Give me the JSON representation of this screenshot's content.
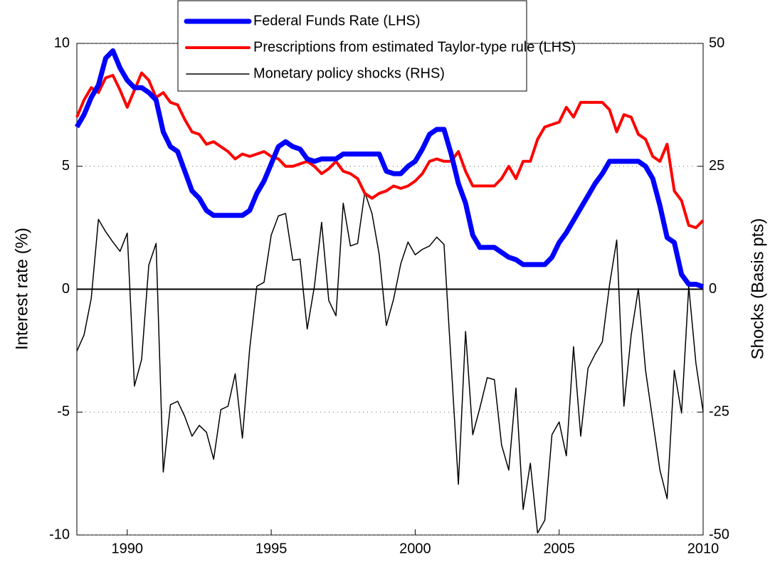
{
  "chart_data": {
    "type": "line",
    "y_label": "Interest rate (%)",
    "y2_label": "Shocks (Basis pts)",
    "xlim": [
      1988.25,
      2010
    ],
    "xticks": [
      1990,
      1995,
      2000,
      2005,
      2010
    ],
    "ylim": [
      -10,
      10
    ],
    "yticks": [
      -10,
      -5,
      0,
      5,
      10
    ],
    "y2lim": [
      -50,
      50
    ],
    "y2ticks": [
      -50,
      -25,
      0,
      25,
      50
    ],
    "grid": true,
    "legend": "top",
    "x": [
      1988.25,
      1988.5,
      1988.75,
      1989,
      1989.25,
      1989.5,
      1989.75,
      1990,
      1990.25,
      1990.5,
      1990.75,
      1991,
      1991.25,
      1991.5,
      1991.75,
      1992,
      1992.25,
      1992.5,
      1992.75,
      1993,
      1993.25,
      1993.5,
      1993.75,
      1994,
      1994.25,
      1994.5,
      1994.75,
      1995,
      1995.25,
      1995.5,
      1995.75,
      1996,
      1996.25,
      1996.5,
      1996.75,
      1997,
      1997.25,
      1997.5,
      1997.75,
      1998,
      1998.25,
      1998.5,
      1998.75,
      1999,
      1999.25,
      1999.5,
      1999.75,
      2000,
      2000.25,
      2000.5,
      2000.75,
      2001,
      2001.25,
      2001.5,
      2001.75,
      2002,
      2002.25,
      2002.5,
      2002.75,
      2003,
      2003.25,
      2003.5,
      2003.75,
      2004,
      2004.25,
      2004.5,
      2004.75,
      2005,
      2005.25,
      2005.5,
      2005.75,
      2006,
      2006.25,
      2006.5,
      2006.75,
      2007,
      2007.25,
      2007.5,
      2007.75,
      2008,
      2008.25,
      2008.5,
      2008.75,
      2009,
      2009.25,
      2009.5,
      2009.75,
      2010
    ],
    "series": [
      {
        "name": "Federal Funds Rate (LHS)",
        "color": "#0000ff",
        "width": 7,
        "values": [
          6.6,
          7.1,
          7.8,
          8.3,
          9.4,
          9.7,
          9,
          8.5,
          8.2,
          8.2,
          8,
          7.7,
          6.4,
          5.8,
          5.6,
          4.8,
          4,
          3.7,
          3.2,
          3,
          3,
          3,
          3,
          3,
          3.2,
          3.9,
          4.4,
          5.1,
          5.8,
          6,
          5.8,
          5.7,
          5.3,
          5.2,
          5.3,
          5.3,
          5.3,
          5.5,
          5.5,
          5.5,
          5.5,
          5.5,
          5.5,
          4.8,
          4.7,
          4.7,
          5,
          5.2,
          5.7,
          6.3,
          6.5,
          6.5,
          5.5,
          4.3,
          3.5,
          2.2,
          1.7,
          1.7,
          1.7,
          1.5,
          1.3,
          1.2,
          1,
          1,
          1,
          1,
          1.3,
          1.9,
          2.3,
          2.8,
          3.3,
          3.8,
          4.3,
          4.7,
          5.2,
          5.2,
          5.2,
          5.2,
          5.2,
          5,
          4.5,
          3.4,
          2.1,
          1.9,
          0.6,
          0.2,
          0.2,
          0.1
        ]
      },
      {
        "name": "Prescriptions from estimated Taylor-type rule (LHS)",
        "color": "#ff0000",
        "width": 4,
        "values": [
          7,
          7.7,
          8.2,
          8,
          8.6,
          8.7,
          8.1,
          7.4,
          8.1,
          8.8,
          8.5,
          7.8,
          8,
          7.6,
          7.5,
          6.9,
          6.4,
          6.3,
          5.9,
          6,
          5.8,
          5.6,
          5.3,
          5.5,
          5.4,
          5.5,
          5.6,
          5.4,
          5.3,
          5,
          5,
          5.1,
          5.2,
          5,
          4.7,
          4.9,
          5.2,
          4.8,
          4.7,
          4.5,
          3.9,
          3.7,
          3.9,
          4,
          4.2,
          4.1,
          4.2,
          4.4,
          4.7,
          5.2,
          5.3,
          5.2,
          5.2,
          5.6,
          4.8,
          4.2,
          4.2,
          4.2,
          4.2,
          4.5,
          5,
          4.5,
          5.2,
          5.2,
          6.1,
          6.6,
          6.7,
          6.8,
          7.4,
          7,
          7.6,
          7.6,
          7.6,
          7.6,
          7.3,
          6.4,
          7.1,
          7,
          6.3,
          6.1,
          5.4,
          5.2,
          5.9,
          4,
          3.6,
          2.6,
          2.5,
          2.8
        ]
      },
      {
        "name": "Monetary policy shocks (RHS)",
        "color": "#000000",
        "width": 1.5,
        "axis": "y2",
        "values": [
          -12.6,
          -9.3,
          -1.9,
          14.2,
          11.7,
          9.6,
          7.7,
          11.4,
          -19.7,
          -14.3,
          4.9,
          9.3,
          -37.2,
          -23.5,
          -22.8,
          -25.9,
          -29.9,
          -27.7,
          -29.1,
          -34.6,
          -24.5,
          -23.8,
          -17.2,
          -30.3,
          -12.2,
          0.6,
          1.4,
          11,
          14.9,
          15.4,
          5.9,
          6.1,
          -8.1,
          0.6,
          13.6,
          -2.3,
          -5.4,
          17.5,
          8.8,
          9.3,
          19.7,
          15.4,
          7.1,
          -7.4,
          -2,
          5.2,
          9.6,
          7,
          8.1,
          8.8,
          10.6,
          9.1,
          -15.1,
          -39.7,
          -8.6,
          -29.6,
          -24.1,
          -18,
          -18.4,
          -31.7,
          -36.8,
          -20.1,
          -44.8,
          -35.4,
          -49.6,
          -47,
          -29.6,
          -27,
          -33.9,
          -11.7,
          -29.9,
          -16.1,
          -13.2,
          -10.7,
          0.9,
          10,
          -23.8,
          -9.3,
          0.1,
          -16.5,
          -26.7,
          -36.8,
          -42.6,
          -16.5,
          -25.2,
          0.6,
          -15.1,
          -24.9
        ]
      }
    ]
  }
}
